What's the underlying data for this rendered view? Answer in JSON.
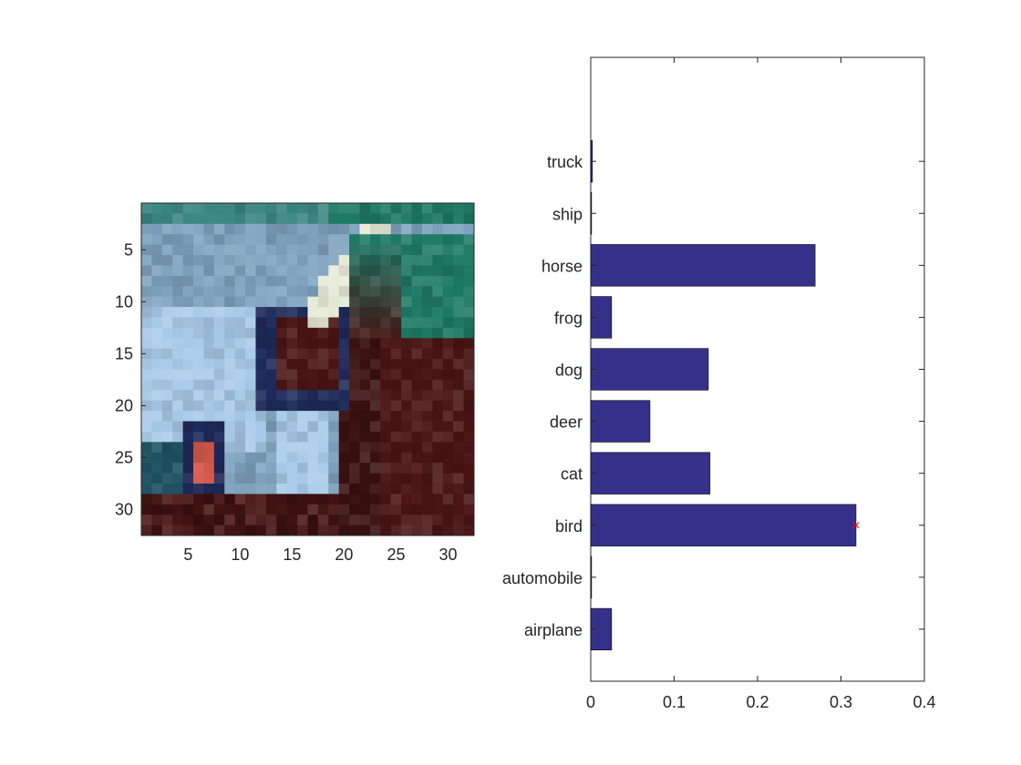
{
  "chart_data": [
    {
      "type": "heatmap",
      "title": "",
      "xlabel": "",
      "ylabel": "",
      "xlim": [
        0.5,
        32.5
      ],
      "ylim": [
        0.5,
        32.5
      ],
      "xticks": [
        5,
        10,
        15,
        20,
        25,
        30
      ],
      "yticks": [
        5,
        10,
        15,
        20,
        25,
        30
      ],
      "grid": false,
      "colors": {
        "teal": "#1e7a66",
        "steel_blue": "#7fa3bf",
        "light_blue": "#a9cbea",
        "cream": "#e8ead8",
        "navy": "#1e2a5a",
        "maroon": "#4a1414",
        "dark_red": "#3a1010",
        "red": "#d65a4e"
      }
    },
    {
      "type": "bar",
      "orientation": "horizontal",
      "title": "",
      "xlabel": "",
      "ylabel": "",
      "categories": [
        "airplane",
        "automobile",
        "bird",
        "cat",
        "deer",
        "dog",
        "frog",
        "horse",
        "ship",
        "truck"
      ],
      "values": [
        0.025,
        0.001,
        0.318,
        0.143,
        0.071,
        0.141,
        0.025,
        0.269,
        0.001,
        0.002
      ],
      "xlim": [
        0,
        0.4
      ],
      "xticks": [
        0,
        0.1,
        0.2,
        0.3,
        0.4
      ],
      "tick_labels": [
        "0",
        "0.1",
        "0.2",
        "0.3",
        "0.4"
      ],
      "bar_color": "#35318a",
      "marker": {
        "category": "bird",
        "value": 0.318,
        "symbol": "×",
        "color": "#ff0000"
      },
      "grid": false
    }
  ]
}
